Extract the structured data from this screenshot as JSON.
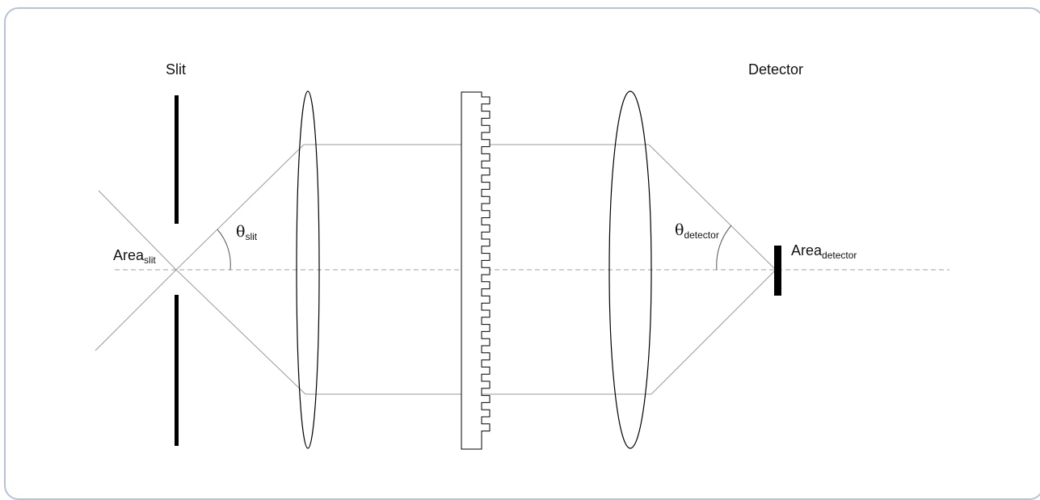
{
  "labels": {
    "slit": "Slit",
    "detector": "Detector",
    "area_slit_main": "Area",
    "area_slit_sub": "slit",
    "theta_slit_main": "θ",
    "theta_slit_sub": "slit",
    "theta_detector_main": "θ",
    "theta_detector_sub": "detector",
    "area_detector_main": "Area",
    "area_detector_sub": "detector"
  },
  "colors": {
    "frame_border": "#b4c2dc",
    "ray": "#9a9a9a",
    "axis": "#a0a0a0",
    "ink": "#000000"
  }
}
